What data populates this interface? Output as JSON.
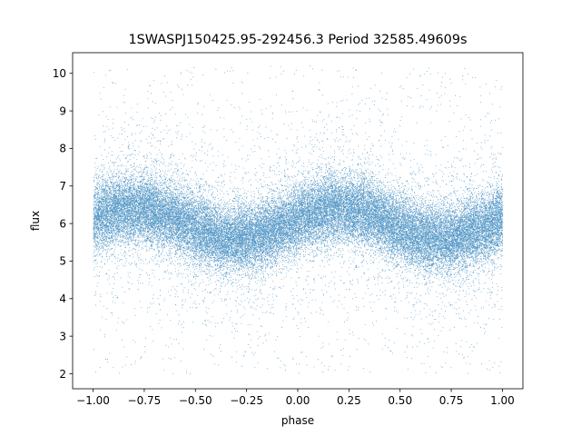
{
  "chart_data": {
    "type": "scatter",
    "title": "1SWASPJ150425.95-292456.3 Period 32585.49609s",
    "xlabel": "phase",
    "ylabel": "flux",
    "xlim": [
      -1.1,
      1.1
    ],
    "ylim": [
      1.6,
      10.55
    ],
    "xticks": [
      -1.0,
      -0.75,
      -0.5,
      -0.25,
      0.0,
      0.25,
      0.5,
      0.75,
      1.0
    ],
    "xtick_labels": [
      "−1.00",
      "−0.75",
      "−0.50",
      "−0.25",
      "0.00",
      "0.25",
      "0.50",
      "0.75",
      "1.00"
    ],
    "yticks": [
      2,
      3,
      4,
      5,
      6,
      7,
      8,
      9,
      10
    ],
    "ytick_labels": [
      "2",
      "3",
      "4",
      "5",
      "6",
      "7",
      "8",
      "9",
      "10"
    ],
    "grid": false,
    "legend": "none",
    "marker_color": "#1f77b4",
    "phase_range": [
      -1.0,
      1.0
    ],
    "flux_clip": [
      2.0,
      10.2
    ],
    "folded_curve": {
      "mean_flux": 6.0,
      "amplitude": 0.4,
      "maximum_phases": [
        -0.8,
        0.2
      ],
      "minimum_phases": [
        -0.3,
        0.7
      ],
      "core_spread": 0.45
    },
    "points_plotted": 42000
  }
}
